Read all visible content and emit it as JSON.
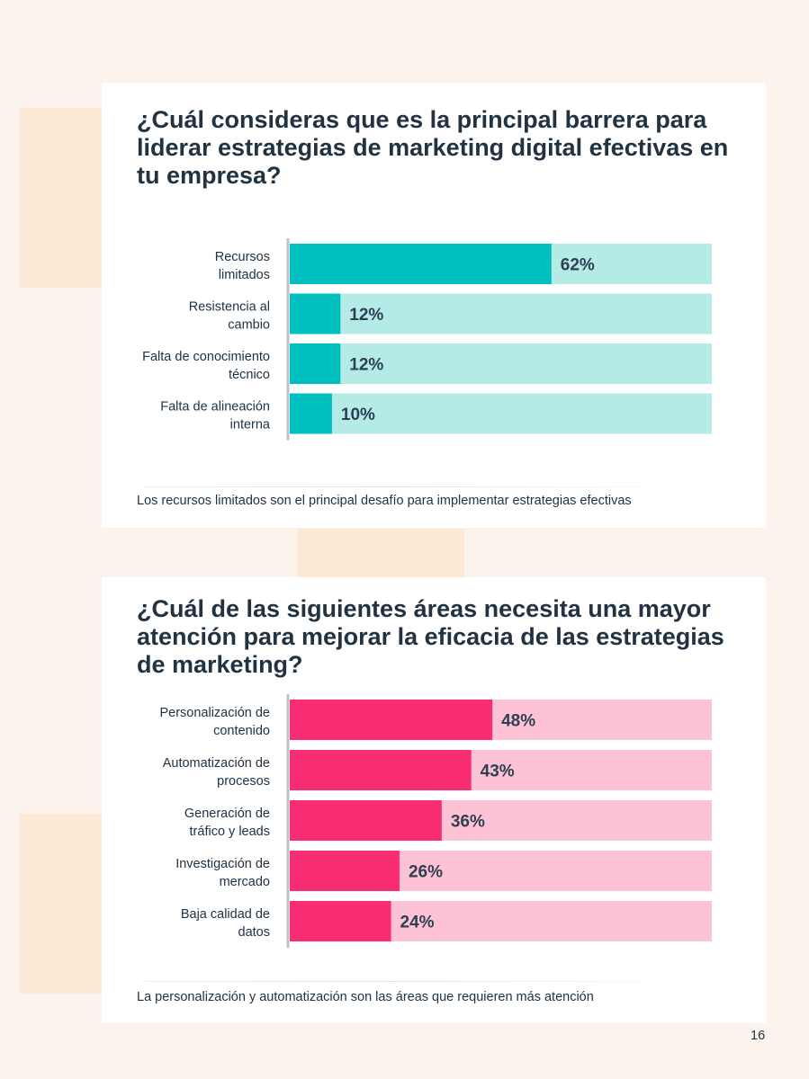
{
  "page_number": "16",
  "colors": {
    "teal": "#00bfbf",
    "teal_light": "#b5ebe7",
    "pink": "#f72c73",
    "pink_light": "#fdc2d3"
  },
  "sections": [
    {
      "title": "¿Cuál consideras que es la principal barrera para liderar estrategias de marketing digital efectivas en tu empresa?",
      "note": "Los recursos limitados son el principal desafío para implementar estrategias efectivas"
    },
    {
      "title": "¿Cuál de las siguientes áreas necesita una mayor atención para mejorar la eficacia de las estrategias de marketing?",
      "note": "La personalización y automatización son las áreas que requieren más atención"
    }
  ],
  "chart_data": [
    {
      "type": "bar",
      "orientation": "horizontal",
      "categories": [
        [
          "Recursos",
          "limitados"
        ],
        [
          "Resistencia al",
          "cambio"
        ],
        [
          "Falta de conocimiento",
          "técnico"
        ],
        [
          "Falta de alineación",
          "interna"
        ]
      ],
      "values": [
        62,
        12,
        12,
        10
      ],
      "value_labels": [
        "62%",
        "12%",
        "12%",
        "10%"
      ],
      "xlim": [
        0,
        100
      ],
      "bar_color": "#00bfbf",
      "track_color": "#b5ebe7"
    },
    {
      "type": "bar",
      "orientation": "horizontal",
      "categories": [
        [
          "Personalización de",
          "contenido"
        ],
        [
          "Automatización de",
          "procesos"
        ],
        [
          "Generación de",
          "tráfico y leads"
        ],
        [
          "Investigación de",
          "mercado"
        ],
        [
          "Baja calidad de",
          "datos"
        ]
      ],
      "values": [
        48,
        43,
        36,
        26,
        24
      ],
      "value_labels": [
        "48%",
        "43%",
        "36%",
        "26%",
        "24%"
      ],
      "xlim": [
        0,
        100
      ],
      "bar_color": "#f72c73",
      "track_color": "#fdc2d3"
    }
  ]
}
